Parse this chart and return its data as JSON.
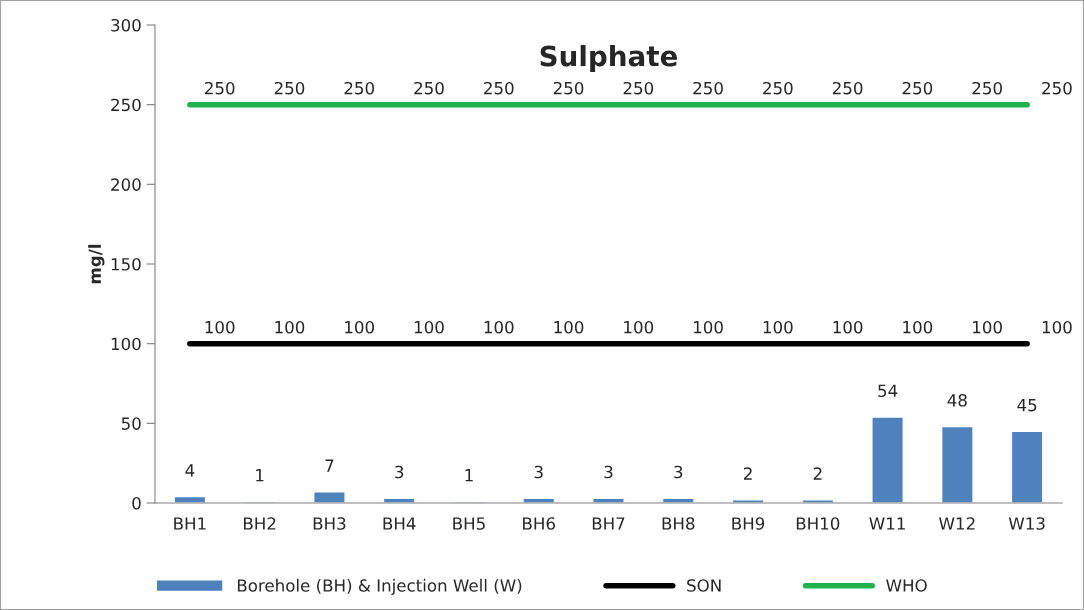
{
  "chart_data": {
    "type": "bar",
    "title": "Sulphate",
    "ylabel": "mg/l",
    "categories": [
      "BH1",
      "BH2",
      "BH3",
      "BH4",
      "BH5",
      "BH6",
      "BH7",
      "BH8",
      "BH9",
      "BH10",
      "W11",
      "W12",
      "W13"
    ],
    "series": [
      {
        "name": "Borehole (BH) & Injection Well (W)",
        "color": "#4f81bd",
        "values": [
          4,
          1,
          7,
          3,
          1,
          3,
          3,
          3,
          2,
          2,
          54,
          48,
          45
        ]
      },
      {
        "name": "SON",
        "type": "line",
        "color": "#000000",
        "values": [
          100,
          100,
          100,
          100,
          100,
          100,
          100,
          100,
          100,
          100,
          100,
          100,
          100
        ]
      },
      {
        "name": "WHO",
        "type": "line",
        "color": "#22b14c",
        "values": [
          250,
          250,
          250,
          250,
          250,
          250,
          250,
          250,
          250,
          250,
          250,
          250,
          250
        ]
      }
    ],
    "ylim": [
      0,
      300
    ],
    "yticks": [
      0,
      50,
      100,
      150,
      200,
      250,
      300
    ],
    "data_labels": true,
    "grid": false,
    "legend": "bottom",
    "marker": "none",
    "line_style": "solid"
  }
}
